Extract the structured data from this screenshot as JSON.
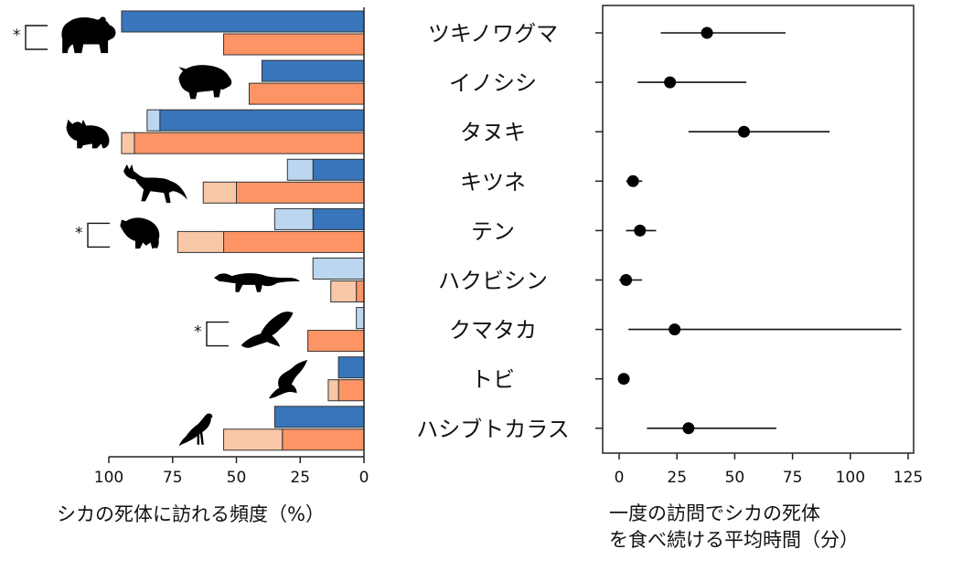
{
  "chart_data": [
    {
      "type": "bar",
      "orientation": "horizontal",
      "x_reversed": true,
      "xlabel": "シカの死体に訪れる頻度（%）",
      "xlim": [
        100,
        0
      ],
      "xticks": [
        100,
        75,
        50,
        25,
        0
      ],
      "categories": [
        "ツキノワグマ",
        "イノシシ",
        "タヌキ",
        "キツネ",
        "テン",
        "ハクビシン",
        "クマタカ",
        "トビ",
        "ハシブトカラス"
      ],
      "series_colors": {
        "blue": "#3875bb",
        "light_blue": "#bcd6f0",
        "orange": "#fd9466",
        "light_orange": "#f8c7a8"
      },
      "series": [
        {
          "color_key": "blue",
          "row": "upper",
          "values": [
            95,
            40,
            80,
            20,
            20,
            0,
            0,
            10,
            35
          ]
        },
        {
          "color_key": "light_blue",
          "row": "upper",
          "stacked_on_previous": true,
          "values": [
            0,
            0,
            5,
            10,
            15,
            20,
            3,
            0,
            0
          ]
        },
        {
          "color_key": "orange",
          "row": "lower",
          "values": [
            55,
            45,
            90,
            50,
            55,
            3,
            22,
            10,
            32
          ]
        },
        {
          "color_key": "light_orange",
          "row": "lower",
          "stacked_on_previous": true,
          "values": [
            0,
            0,
            5,
            13,
            18,
            10,
            0,
            4,
            23
          ]
        }
      ],
      "significance_markers": [
        {
          "category": "ツキノワグマ",
          "text": "*"
        },
        {
          "category": "テン",
          "text": "*"
        },
        {
          "category": "クマタカ",
          "text": "*"
        }
      ],
      "animal_icons": [
        "black-bear-icon",
        "wild-boar-icon",
        "raccoon-dog-icon",
        "fox-icon",
        "marten-icon",
        "masked-palm-civet-icon",
        "hawk-eagle-icon",
        "kite-icon",
        "crow-icon"
      ]
    },
    {
      "type": "scatter",
      "error_bars": true,
      "xlabel": [
        "一度の訪問でシカの死体",
        "を食べ続ける平均時間（分）"
      ],
      "xlim": [
        -5,
        125
      ],
      "xticks": [
        0,
        25,
        50,
        75,
        100,
        125
      ],
      "categories": [
        "ツキノワグマ",
        "イノシシ",
        "タヌキ",
        "キツネ",
        "テン",
        "ハクビシン",
        "クマタカ",
        "トビ",
        "ハシブトカラス"
      ],
      "mean": [
        38,
        22,
        54,
        6,
        9,
        3,
        24,
        2,
        30
      ],
      "lower": [
        18,
        8,
        30,
        3,
        3,
        0,
        4,
        2,
        12
      ],
      "upper": [
        72,
        55,
        91,
        10,
        16,
        10,
        122,
        2,
        68
      ]
    }
  ]
}
